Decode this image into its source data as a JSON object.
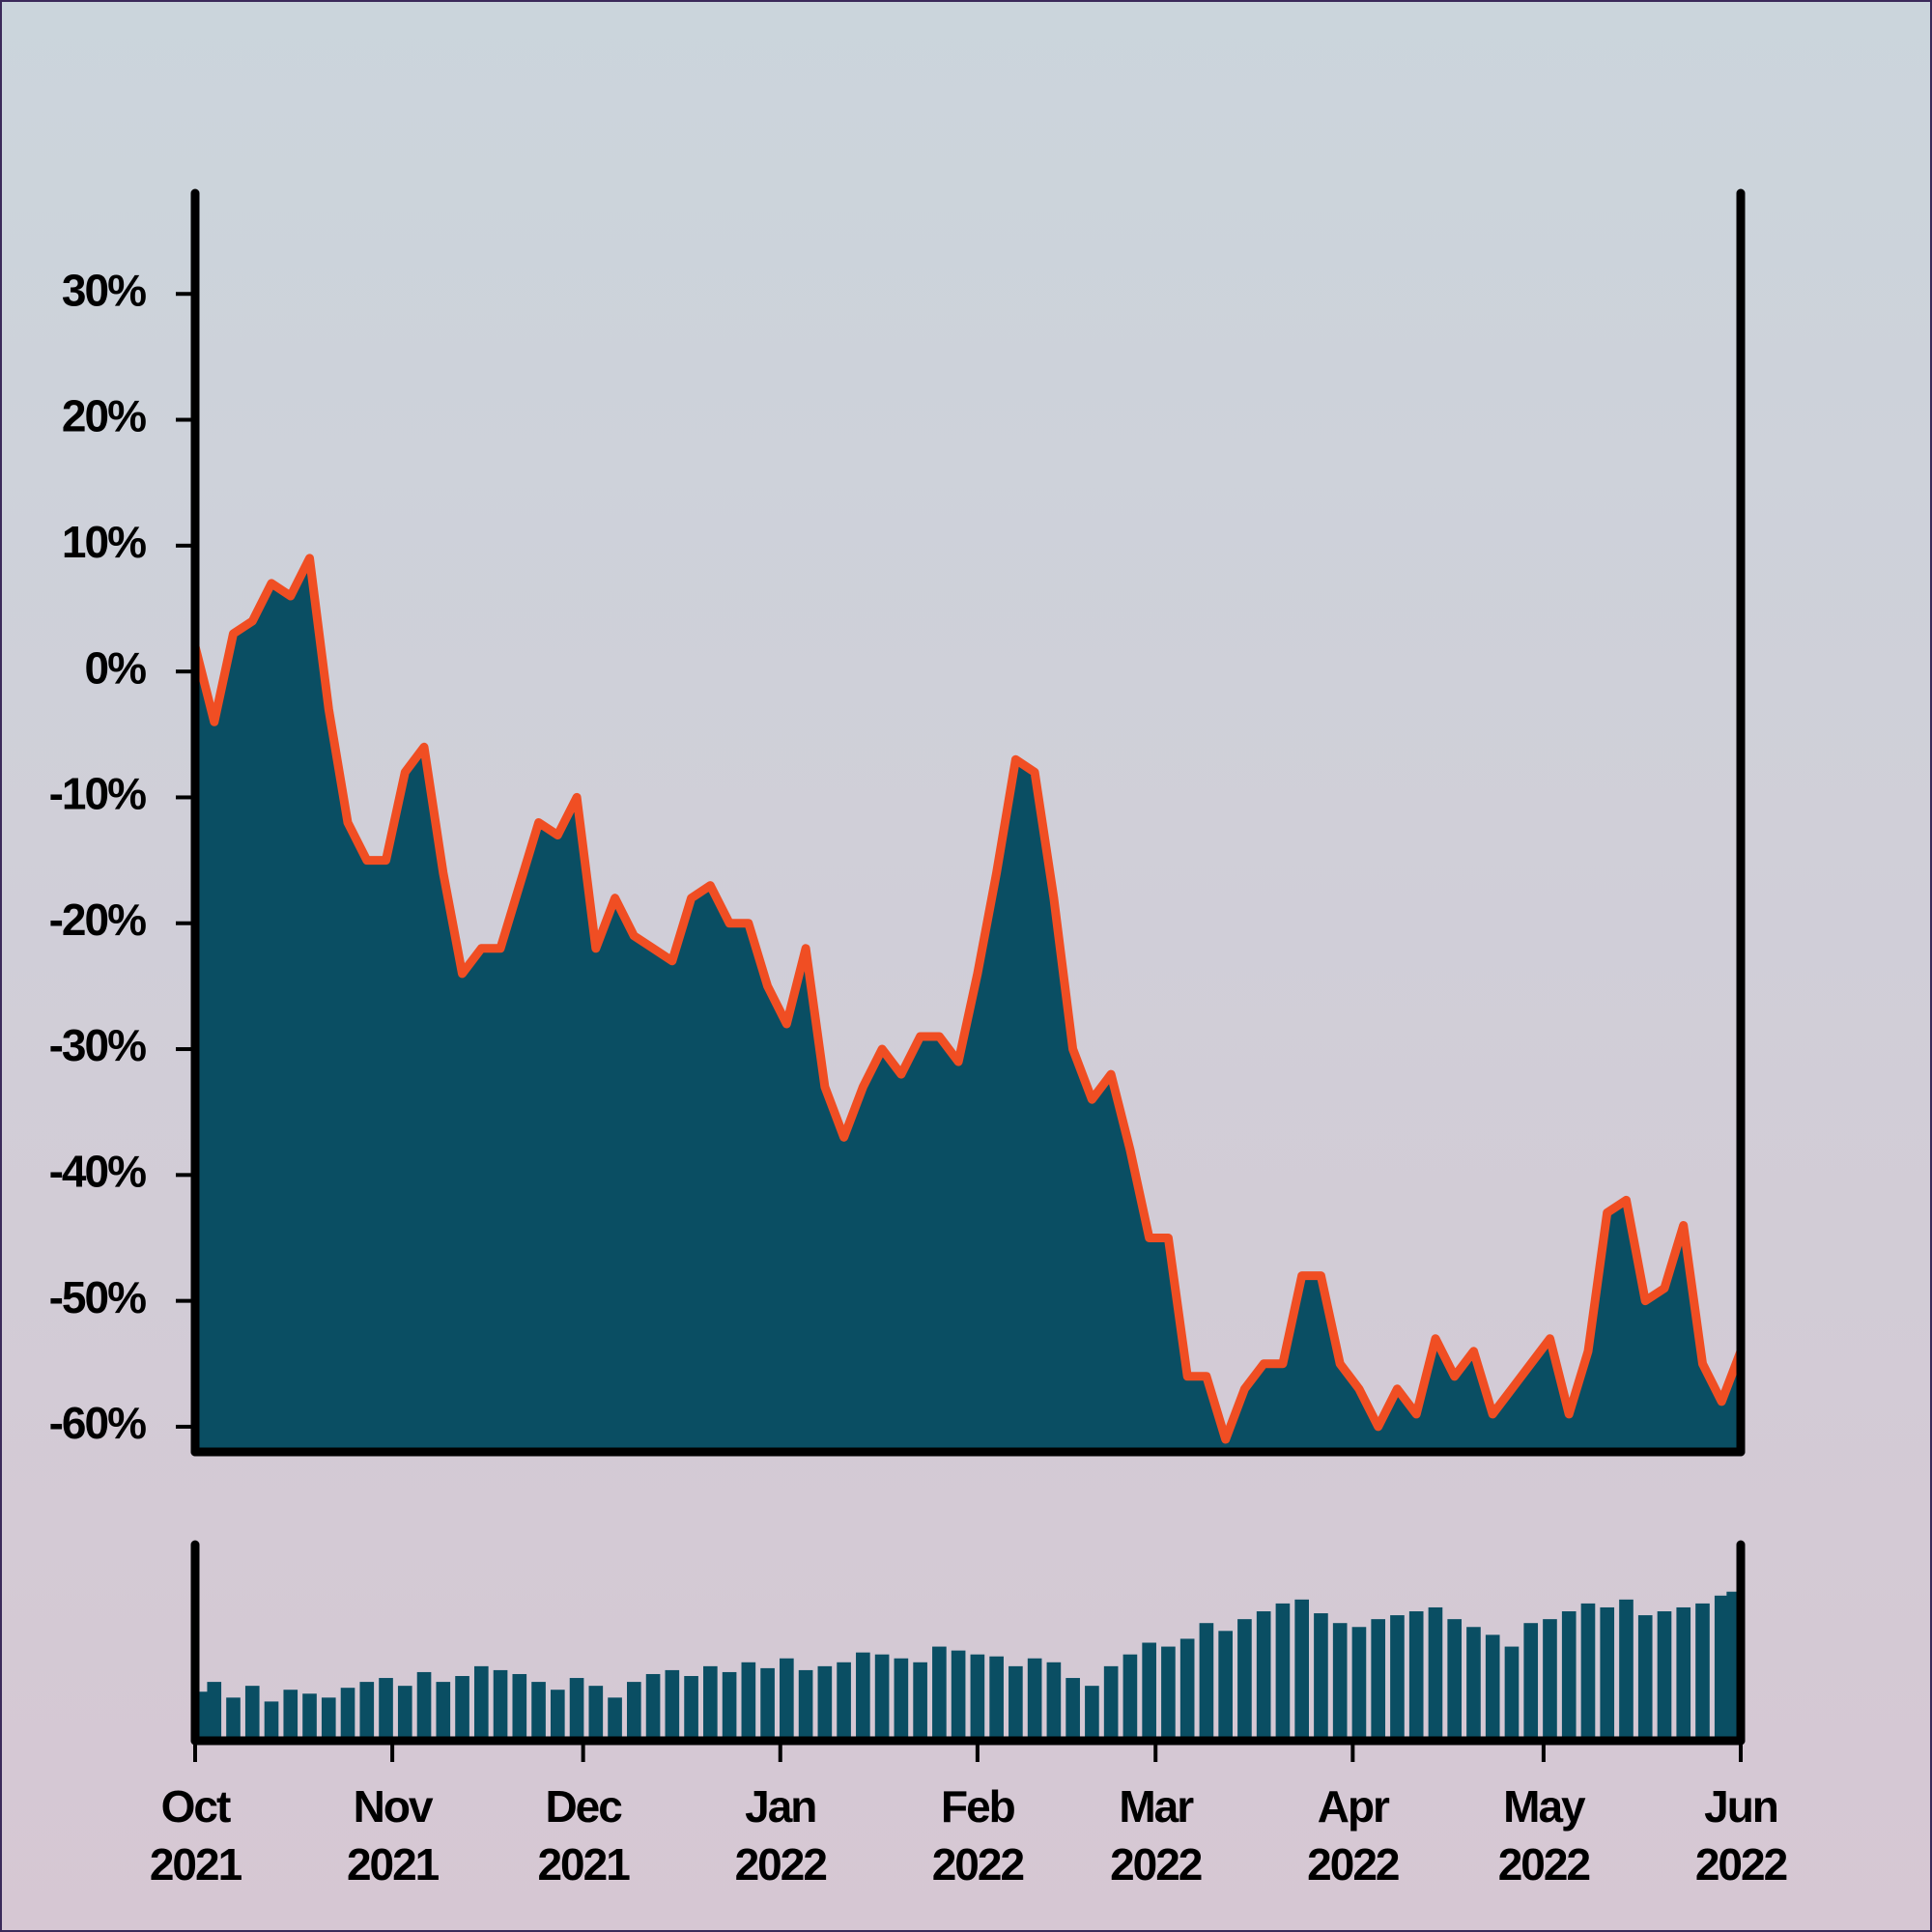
{
  "chart_data": [
    {
      "type": "area",
      "x": [
        0,
        3,
        6,
        9,
        12,
        15,
        18,
        21,
        24,
        27,
        30,
        33,
        36,
        39,
        42,
        45,
        48,
        51,
        54,
        57,
        60,
        63,
        66,
        69,
        72,
        75,
        78,
        81,
        84,
        87,
        90,
        93,
        96,
        99,
        102,
        105,
        108,
        111,
        114,
        117,
        120,
        123,
        126,
        129,
        132,
        135,
        138,
        141,
        144,
        147,
        150,
        153,
        156,
        159,
        162,
        165,
        168,
        171,
        174,
        177,
        180,
        183,
        186,
        189,
        192,
        195,
        198,
        201,
        204,
        207,
        210,
        213,
        216,
        219,
        222,
        225,
        228,
        231,
        234,
        237,
        240,
        243
      ],
      "values": [
        2,
        -4,
        3,
        4,
        7,
        6,
        9,
        -3,
        -12,
        -15,
        -15,
        -8,
        -6,
        -16,
        -24,
        -22,
        -22,
        -17,
        -12,
        -13,
        -10,
        -22,
        -18,
        -21,
        -22,
        -23,
        -18,
        -17,
        -20,
        -20,
        -25,
        -28,
        -22,
        -33,
        -37,
        -33,
        -30,
        -32,
        -29,
        -29,
        -31,
        -24,
        -16,
        -7,
        -8,
        -18,
        -30,
        -34,
        -32,
        -38,
        -45,
        -45,
        -56,
        -56,
        -61,
        -57,
        -55,
        -55,
        -48,
        -48,
        -55,
        -57,
        -60,
        -57,
        -59,
        -53,
        -56,
        -54,
        -59,
        -57,
        -55,
        -53,
        -59,
        -54,
        -43,
        -42,
        -50,
        -49,
        -44,
        -55,
        -58,
        -54
      ],
      "color": "#0a4e63",
      "line_color": "#f04e23",
      "xlim": [
        0,
        243
      ],
      "ylim": [
        -62,
        38
      ],
      "yticks": [
        {
          "value": 30,
          "label": "30%"
        },
        {
          "value": 20,
          "label": "20%"
        },
        {
          "value": 10,
          "label": "10%"
        },
        {
          "value": 0,
          "label": "0%"
        },
        {
          "value": -10,
          "label": "-10%"
        },
        {
          "value": -20,
          "label": "-20%"
        },
        {
          "value": -30,
          "label": "-30%"
        },
        {
          "value": -40,
          "label": "-40%"
        },
        {
          "value": -50,
          "label": "-50%"
        },
        {
          "value": -60,
          "label": "-60%"
        }
      ]
    },
    {
      "type": "bar",
      "x": [
        0,
        3,
        6,
        9,
        12,
        15,
        18,
        21,
        24,
        27,
        30,
        33,
        36,
        39,
        42,
        45,
        48,
        51,
        54,
        57,
        60,
        63,
        66,
        69,
        72,
        75,
        78,
        81,
        84,
        87,
        90,
        93,
        96,
        99,
        102,
        105,
        108,
        111,
        114,
        117,
        120,
        123,
        126,
        129,
        132,
        135,
        138,
        141,
        144,
        147,
        150,
        153,
        156,
        159,
        162,
        165,
        168,
        171,
        174,
        177,
        180,
        183,
        186,
        189,
        192,
        195,
        198,
        201,
        204,
        207,
        210,
        213,
        216,
        219,
        222,
        225,
        228,
        231,
        234,
        237,
        240,
        243
      ],
      "values": [
        25,
        30,
        22,
        28,
        20,
        26,
        24,
        22,
        27,
        30,
        32,
        28,
        35,
        30,
        33,
        38,
        36,
        34,
        30,
        26,
        32,
        28,
        22,
        30,
        34,
        36,
        33,
        38,
        35,
        40,
        37,
        42,
        36,
        38,
        40,
        45,
        44,
        42,
        40,
        48,
        46,
        44,
        43,
        38,
        42,
        40,
        32,
        28,
        38,
        44,
        50,
        48,
        52,
        60,
        56,
        62,
        66,
        70,
        72,
        65,
        60,
        58,
        62,
        64,
        66,
        68,
        62,
        58,
        54,
        48,
        60,
        62,
        66,
        70,
        68,
        72,
        64,
        66,
        68,
        70,
        74,
        76
      ],
      "color": "#0a4e63",
      "xlim": [
        0,
        243
      ],
      "ylim": [
        0,
        100
      ],
      "xticks": [
        {
          "value": 0,
          "label": "Oct\n2021"
        },
        {
          "value": 31,
          "label": "Nov\n2021"
        },
        {
          "value": 61,
          "label": "Dec\n2021"
        },
        {
          "value": 92,
          "label": "Jan\n2022"
        },
        {
          "value": 123,
          "label": "Feb\n2022"
        },
        {
          "value": 151,
          "label": "Mar\n2022"
        },
        {
          "value": 182,
          "label": "Apr\n2022"
        },
        {
          "value": 212,
          "label": "May\n2022"
        },
        {
          "value": 243,
          "label": "Jun\n2022"
        }
      ]
    }
  ]
}
